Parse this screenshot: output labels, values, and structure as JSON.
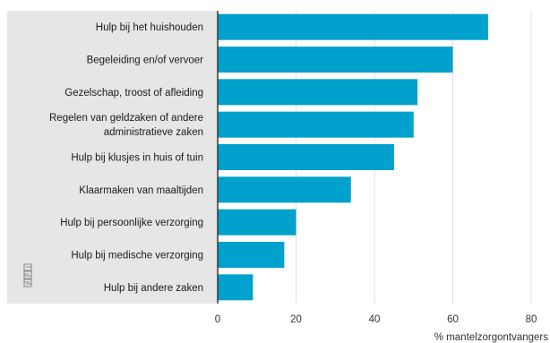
{
  "chart_data": {
    "type": "bar",
    "orientation": "horizontal",
    "categories": [
      [
        "Hulp bij het huishouden"
      ],
      [
        "Begeleiding en/of vervoer"
      ],
      [
        "Gezelschap, troost of afleiding"
      ],
      [
        "Regelen van geldzaken of andere",
        "administratieve zaken"
      ],
      [
        "Hulp bij klusjes in huis of tuin"
      ],
      [
        "Klaarmaken van maaltijden"
      ],
      [
        "Hulp bij persoonlijke verzorging"
      ],
      [
        "Hulp bij medische verzorging"
      ],
      [
        "Hulp bij andere zaken"
      ]
    ],
    "values": [
      69,
      60,
      51,
      50,
      45,
      34,
      20,
      17,
      9
    ],
    "xlim": [
      0,
      80
    ],
    "xticks": [
      "0",
      "20",
      "40",
      "60",
      "80"
    ],
    "xlabel": "% mantelzorgontvangers",
    "ylabel": "",
    "title": "",
    "grid": "vertical",
    "colors": {
      "bar": "#00a1cd",
      "label_panel": "#e6e6e6",
      "gridline": "#e0e0e0",
      "baseline": "#333333",
      "logo": "#8c8c8c"
    }
  },
  "logo": {
    "name": "cbs-logo-icon"
  }
}
